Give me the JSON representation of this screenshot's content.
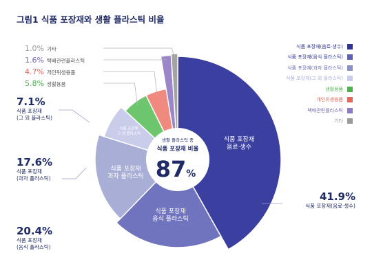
{
  "title": "그림1  식품 포장재와 생활 플라스틱 비율",
  "colors": {
    "navy_text": "#1f2a66",
    "drinks": "#3b3fa0",
    "meal": "#7073bd",
    "snack": "#a9aed6",
    "other_food": "#c9cdea",
    "household": "#6dc66d",
    "personal_hygiene": "#f08a7e",
    "delivery": "#9a86c9",
    "etc": "#a3a3a3"
  },
  "center": {
    "line1": "생활 플라스틱 중",
    "line2": "식품 포장재 비율",
    "value": "87",
    "unit": "%"
  },
  "slice_labels": {
    "drinks": [
      "식품 포장재",
      "음료·생수"
    ],
    "meal": [
      "식품 포장재",
      "음식 플라스틱"
    ],
    "snack": [
      "식품 포장재",
      "과자 플라스틱"
    ],
    "other_food": [
      "식품 포장재",
      "그 외 플라스틱"
    ]
  },
  "side_labels": {
    "drinks": {
      "pct": "41.9%",
      "name": "식품 포장재(음료·생수)"
    },
    "meal": {
      "pct": "20.4%",
      "name1": "식품 포장재",
      "name2": "(음식 플라스틱)"
    },
    "snack": {
      "pct": "17.6%",
      "name1": "식품 포장재",
      "name2": "(과자 플라스틱)"
    },
    "other_food": {
      "pct": "7.1%",
      "name1": "식품 포장재",
      "name2": "(그 외 플라스틱)"
    }
  },
  "top_labels": [
    {
      "pct": "1.0%",
      "name": "기타",
      "color": "#9a9a9a"
    },
    {
      "pct": "1.6%",
      "name": "택배관련플라스틱",
      "color": "#7a68b2"
    },
    {
      "pct": "4.7%",
      "name": "개인위생용품",
      "color": "#e0685d"
    },
    {
      "pct": "5.8%",
      "name": "생활용품",
      "color": "#4fae4f"
    }
  ],
  "legend": [
    {
      "label": "식품 포장재(음료·생수)",
      "color": "#2f3492",
      "text_color": "#2f3492"
    },
    {
      "label": "식품 포장재(음식 플라스틱)",
      "color": "#5f62b2",
      "text_color": "#3b3fa0"
    },
    {
      "label": "식품 포장재(과자 플라스틱)",
      "color": "#8b90c6",
      "text_color": "#6d72b5"
    },
    {
      "label": "식품 포장재(그 외 플라스틱)",
      "color": "#c9cdea",
      "text_color": "#a9aed6"
    },
    {
      "label": "생활용품",
      "color": "#4fae4f",
      "text_color": "#4fae4f"
    },
    {
      "label": "개인위생용품",
      "color": "#e0685d",
      "text_color": "#e0685d"
    },
    {
      "label": "택배관련플라스틱",
      "color": "#8e7cc2",
      "text_color": "#7a68b2"
    },
    {
      "label": "기타",
      "color": "#9a9a9a",
      "text_color": "#9a9a9a"
    }
  ],
  "chart_data": {
    "type": "pie",
    "title": "그림1  식품 포장재와 생활 플라스틱 비율",
    "categories": [
      "식품 포장재(음료·생수)",
      "식품 포장재(음식 플라스틱)",
      "식품 포장재(과자 플라스틱)",
      "식품 포장재(그 외 플라스틱)",
      "생활용품",
      "개인위생용품",
      "택배관련플라스틱",
      "기타"
    ],
    "values": [
      41.9,
      20.4,
      17.6,
      7.1,
      5.8,
      4.7,
      1.6,
      1.0
    ],
    "center_value": 87,
    "legend_position": "top-right"
  }
}
